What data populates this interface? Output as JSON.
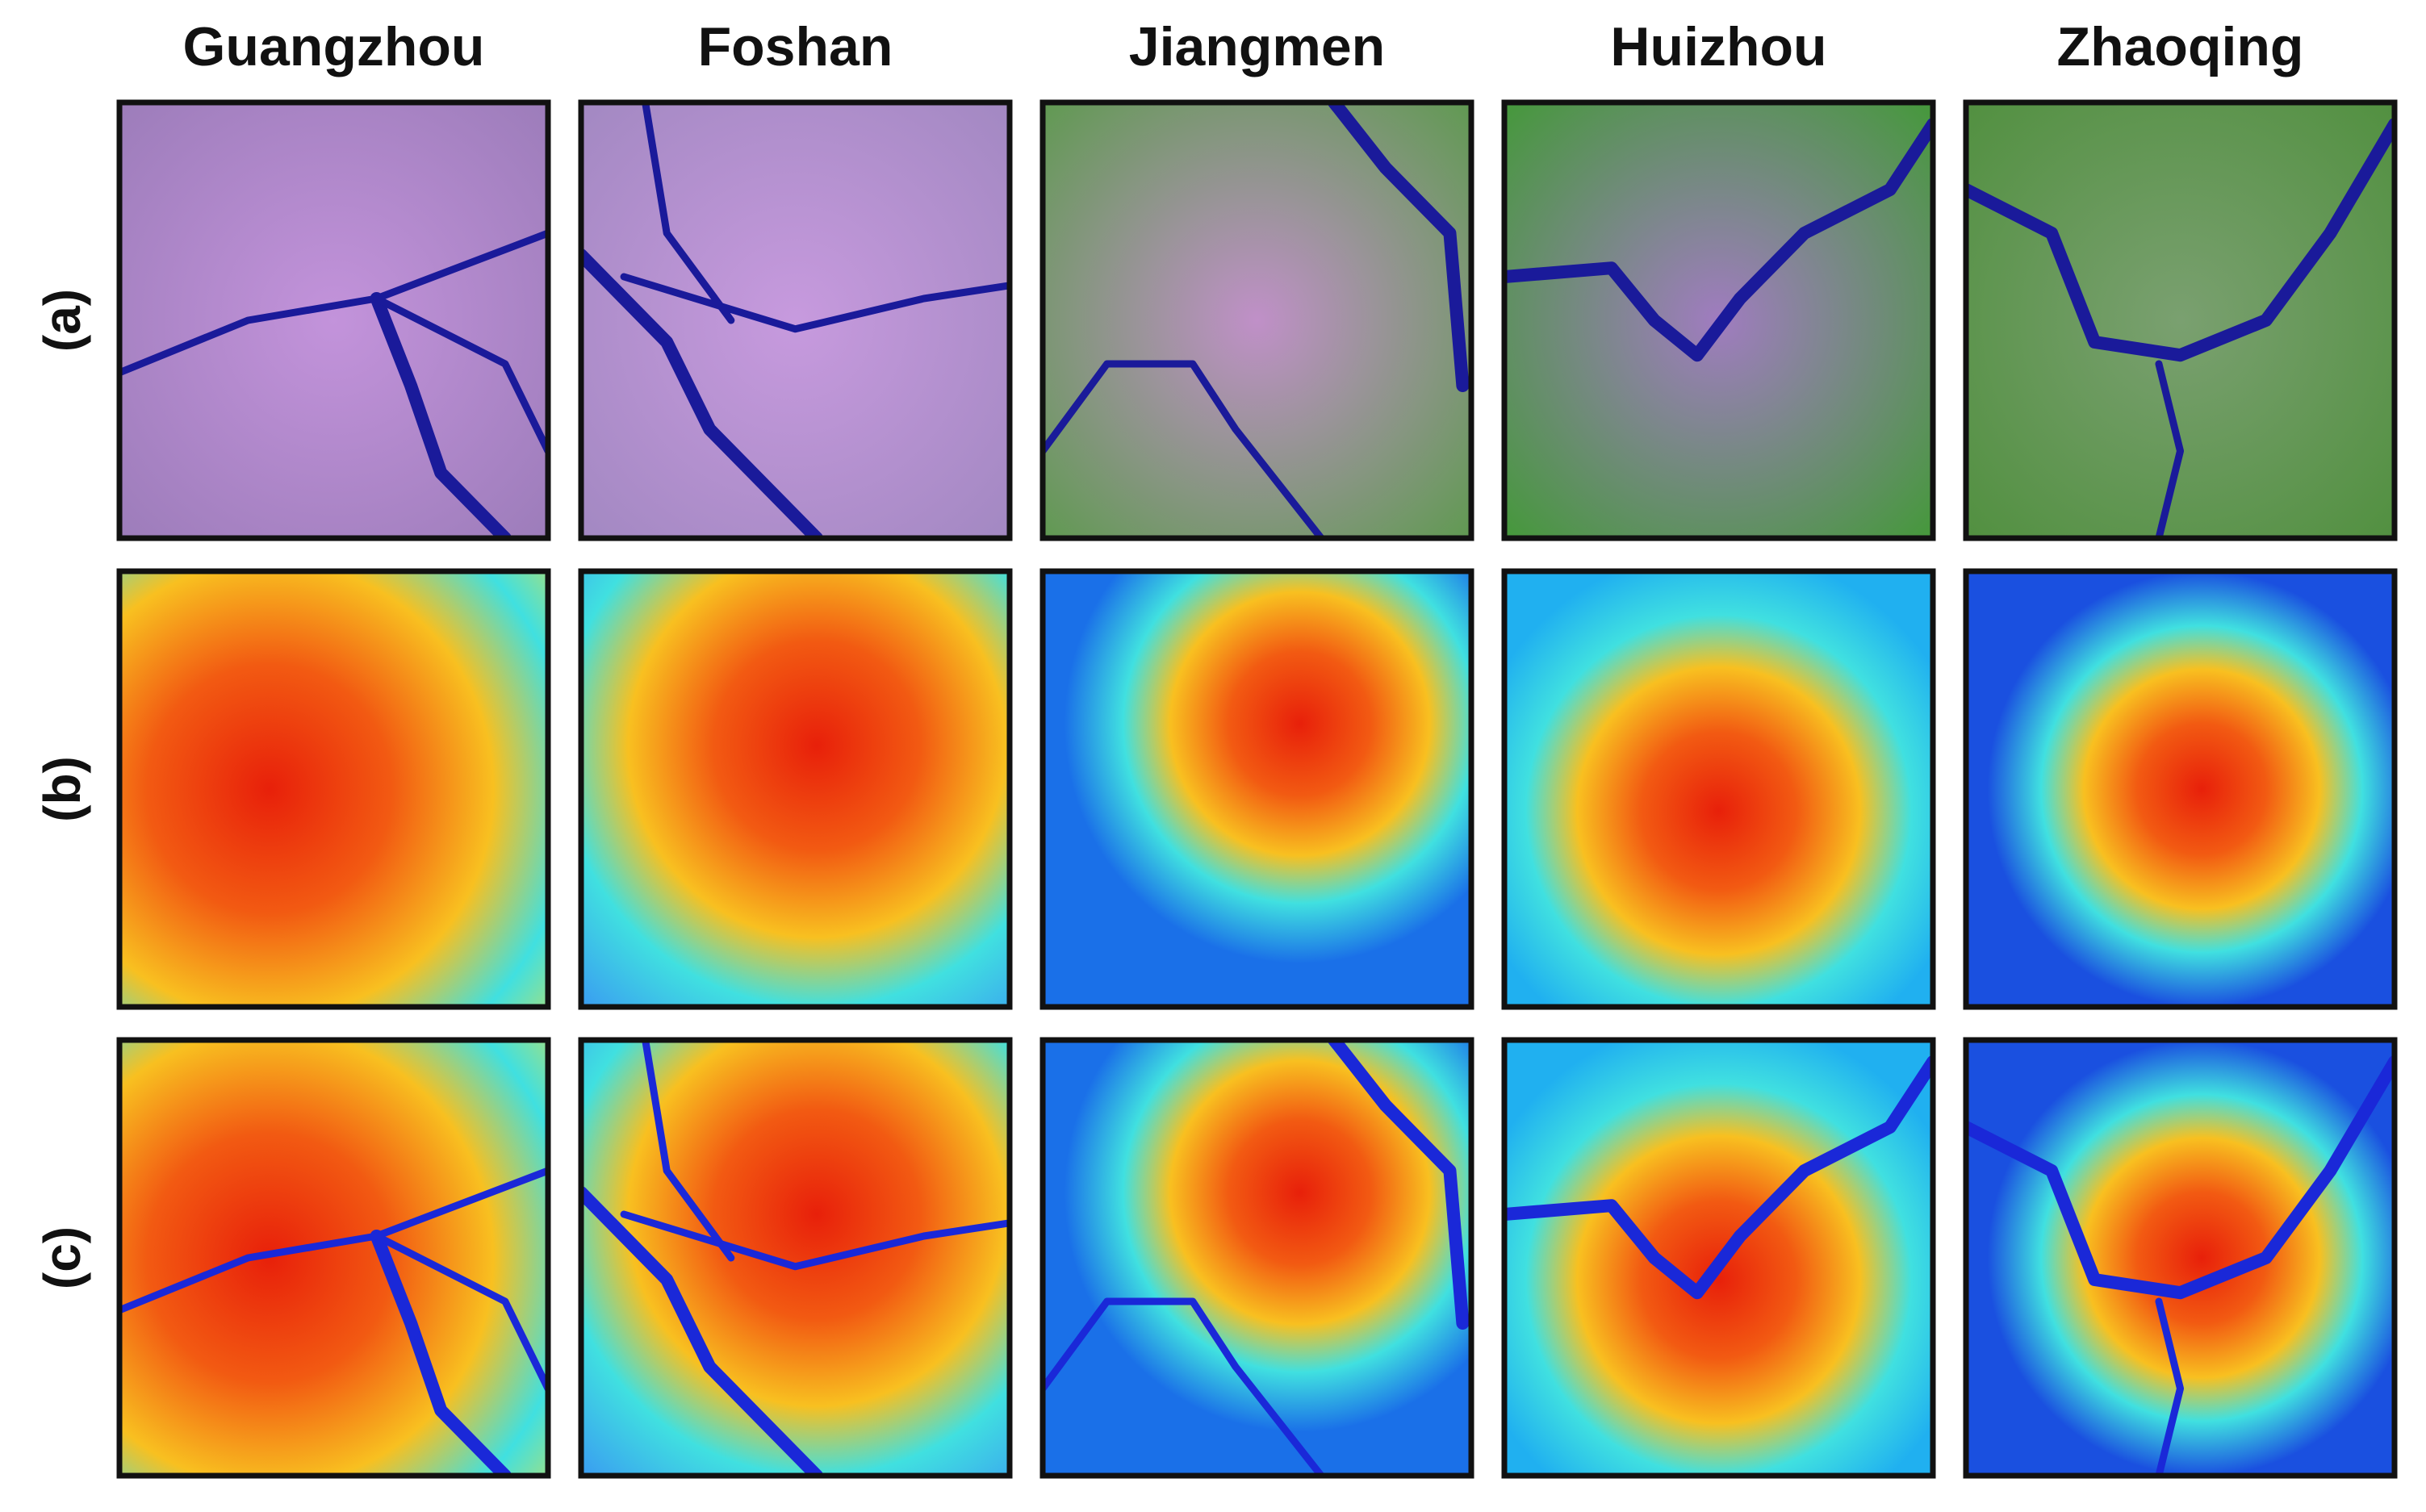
{
  "columns": [
    "Guangzhou",
    "Foshan",
    "Jiangmen",
    "Huizhou",
    "Zhaoqing"
  ],
  "rows": [
    "(a)",
    "(b)",
    "(c)"
  ]
}
